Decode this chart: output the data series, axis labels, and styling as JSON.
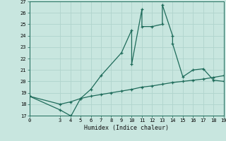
{
  "xlabel": "Humidex (Indice chaleur)",
  "bg_color": "#c8e6df",
  "grid_color": "#b0d4cc",
  "line_color": "#1e6b5a",
  "xlim": [
    0,
    19
  ],
  "ylim": [
    17,
    27
  ],
  "xticks": [
    0,
    3,
    4,
    5,
    6,
    7,
    8,
    9,
    10,
    11,
    12,
    13,
    14,
    15,
    16,
    17,
    18,
    19
  ],
  "yticks": [
    17,
    18,
    19,
    20,
    21,
    22,
    23,
    24,
    25,
    26,
    27
  ],
  "line1_x": [
    0,
    3,
    4,
    4,
    5,
    6,
    7,
    9,
    10,
    10,
    11,
    11,
    12,
    13,
    13,
    14,
    14,
    15,
    16,
    17,
    18,
    19
  ],
  "line1_y": [
    18.7,
    17.5,
    17.0,
    16.85,
    18.5,
    19.3,
    20.5,
    22.5,
    24.5,
    21.5,
    26.3,
    24.8,
    24.8,
    25.0,
    26.7,
    24.0,
    23.3,
    20.4,
    21.0,
    21.1,
    20.1,
    20.0
  ],
  "line2_x": [
    0,
    3,
    4,
    5,
    6,
    7,
    8,
    9,
    10,
    11,
    12,
    13,
    14,
    15,
    16,
    17,
    18,
    19
  ],
  "line2_y": [
    18.7,
    18.0,
    18.2,
    18.5,
    18.7,
    18.85,
    19.0,
    19.15,
    19.3,
    19.5,
    19.6,
    19.75,
    19.9,
    20.0,
    20.1,
    20.2,
    20.35,
    20.5
  ]
}
